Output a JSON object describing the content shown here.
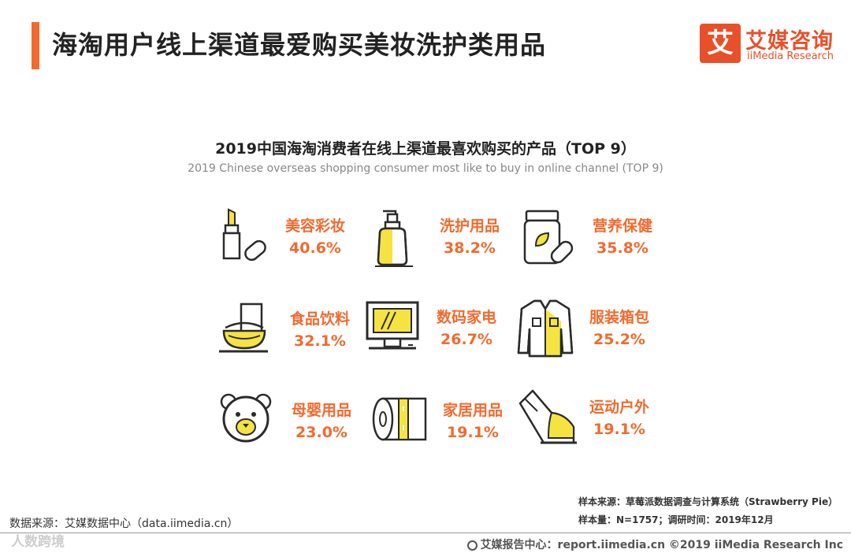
{
  "header": {
    "title": "海淘用户线上渠道最爱购买美妆洗护类用品",
    "logo_mark": "艾",
    "logo_cn": "艾媒咨询",
    "logo_en": "iiMedia Research"
  },
  "colors": {
    "accent": "#f26a2e",
    "brand": "#e8502a",
    "icon_fill": "#f5e342",
    "icon_stroke": "#2b2b2b"
  },
  "chart_data": {
    "type": "table",
    "title": "2019中国海淘消费者在线上渠道最喜欢购买的产品（TOP 9）",
    "subtitle": "2019 Chinese overseas shopping consumer most like to buy in online channel (TOP 9)",
    "unit": "%",
    "items": [
      {
        "name": "美容彩妆",
        "value": 40.6,
        "label": "40.6%",
        "icon": "lipstick-icon"
      },
      {
        "name": "洗护用品",
        "value": 38.2,
        "label": "38.2%",
        "icon": "pump-bottle-icon"
      },
      {
        "name": "营养保健",
        "value": 35.8,
        "label": "35.8%",
        "icon": "supplement-jar-icon"
      },
      {
        "name": "食品饮料",
        "value": 32.1,
        "label": "32.1%",
        "icon": "food-bowl-icon"
      },
      {
        "name": "数码家电",
        "value": 26.7,
        "label": "26.7%",
        "icon": "computer-monitor-icon"
      },
      {
        "name": "服装箱包",
        "value": 25.2,
        "label": "25.2%",
        "icon": "jacket-icon"
      },
      {
        "name": "母婴用品",
        "value": 23.0,
        "label": "23.0%",
        "icon": "bear-face-icon"
      },
      {
        "name": "家居用品",
        "value": 19.1,
        "label": "19.1%",
        "icon": "toilet-paper-icon"
      },
      {
        "name": "运动户外",
        "value": 19.1,
        "label": "19.1%",
        "icon": "boot-icon"
      }
    ]
  },
  "sample": {
    "source": "样本来源：草莓派数据调查与计算系统（Strawberry Pie）",
    "size": "样本量：N=1757；调研时间：2019年12月"
  },
  "data_source": "数据来源：艾媒数据中心（data.iimedia.cn）",
  "footer": "艾媒报告中心：report.iimedia.cn  ©2019  iiMedia Research  Inc",
  "watermark": "人数跨境"
}
